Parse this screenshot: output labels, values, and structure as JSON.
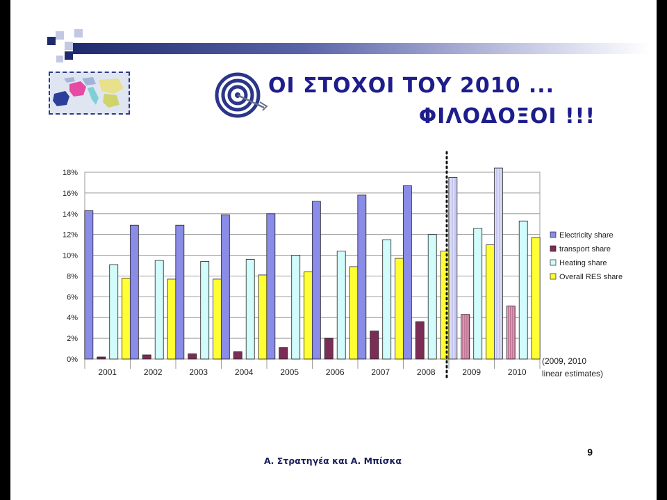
{
  "slide": {
    "title_line1": "ΟΙ ΣΤΟΧΟΙ ΤΟΥ 2010 ...",
    "title_line2": "ΦΙΛΟΔΟΞΟΙ !!!",
    "page_number": "9",
    "footer": "Α. Στρατηγέα και Α. Μπίσκα"
  },
  "chart_data": {
    "type": "bar",
    "categories": [
      "2001",
      "2002",
      "2003",
      "2004",
      "2005",
      "2006",
      "2007",
      "2008",
      "2009",
      "2010"
    ],
    "series": [
      {
        "name": "Electricity share",
        "color": "#8a8ce8",
        "values": [
          14.3,
          12.9,
          12.9,
          13.9,
          14.0,
          15.2,
          15.8,
          16.7,
          17.5,
          18.4
        ]
      },
      {
        "name": "transport share",
        "color": "#7b2d55",
        "values": [
          0.2,
          0.4,
          0.5,
          0.7,
          1.1,
          2.0,
          2.7,
          3.6,
          4.3,
          5.1
        ]
      },
      {
        "name": "Heating share",
        "color": "#d2fbfb",
        "values": [
          9.1,
          9.5,
          9.4,
          9.6,
          10.0,
          10.4,
          11.5,
          12.0,
          12.6,
          13.3
        ]
      },
      {
        "name": "Overall RES share",
        "color": "#ffff33",
        "values": [
          7.8,
          7.7,
          7.7,
          8.1,
          8.4,
          8.9,
          9.7,
          10.4,
          11.0,
          11.7
        ]
      }
    ],
    "ylim": [
      0,
      18
    ],
    "yticks": [
      "0%",
      "2%",
      "4%",
      "6%",
      "8%",
      "10%",
      "12%",
      "14%",
      "16%",
      "18%"
    ],
    "legend_position": "right",
    "grid": true,
    "estimate_categories": [
      "2009",
      "2010"
    ],
    "annotation": [
      "(2009, 2010",
      "linear estimates)"
    ]
  }
}
